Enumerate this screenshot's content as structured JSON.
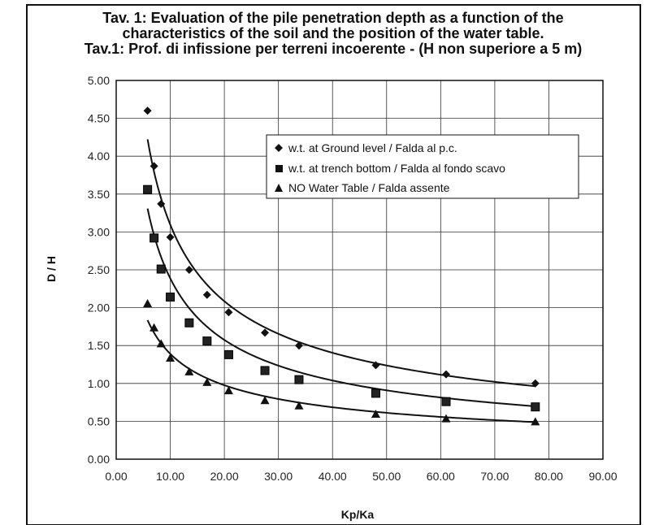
{
  "chart_data": {
    "type": "scatter",
    "title_lines": [
      "Tav. 1:  Evaluation of the pile penetration depth as a function of the",
      "characteristics of the soil and the position of the water table.",
      "Tav.1: Prof. di infissione per terreni incoerente - (H non superiore a 5 m)"
    ],
    "xlabel": "Kp/Ka",
    "ylabel": "D / H",
    "xlim": [
      0,
      90
    ],
    "ylim": [
      0,
      5
    ],
    "x_ticks": [
      "0.00",
      "10.00",
      "20.00",
      "30.00",
      "40.00",
      "50.00",
      "60.00",
      "70.00",
      "80.00",
      "90.00"
    ],
    "y_ticks": [
      "0.00",
      "0.50",
      "1.00",
      "1.50",
      "2.00",
      "2.50",
      "3.00",
      "3.50",
      "4.00",
      "4.50",
      "5.00"
    ],
    "grid": true,
    "legend_position": "upper-right",
    "series": [
      {
        "name": "w.t. at Ground level / Falda al p.c.",
        "marker": "diamond",
        "x": [
          5.8,
          7.0,
          8.3,
          10.0,
          13.5,
          16.8,
          20.8,
          27.5,
          33.8,
          48.0,
          61.0,
          77.5
        ],
        "y": [
          4.6,
          3.87,
          3.37,
          2.93,
          2.5,
          2.17,
          1.94,
          1.67,
          1.5,
          1.24,
          1.12,
          1.0
        ],
        "fit_a": 11.5,
        "fit_b": 0.57
      },
      {
        "name": "w.t. at trench bottom / Falda al fondo scavo",
        "marker": "square",
        "x": [
          5.8,
          7.0,
          8.3,
          10.0,
          13.5,
          16.8,
          20.8,
          27.5,
          33.8,
          48.0,
          61.0,
          77.5
        ],
        "y": [
          3.56,
          2.92,
          2.51,
          2.14,
          1.8,
          1.56,
          1.38,
          1.17,
          1.05,
          0.87,
          0.76,
          0.69
        ],
        "fit_a": 9.5,
        "fit_b": 0.6
      },
      {
        "name": "NO Water Table / Falda assente",
        "marker": "triangle",
        "x": [
          5.8,
          7.0,
          8.3,
          10.0,
          13.5,
          16.8,
          20.8,
          27.5,
          33.8,
          48.0,
          61.0,
          77.5
        ],
        "y": [
          2.05,
          1.73,
          1.52,
          1.33,
          1.15,
          1.01,
          0.9,
          0.77,
          0.7,
          0.59,
          0.53,
          0.49
        ],
        "fit_a": 4.5,
        "fit_b": 0.51
      }
    ]
  }
}
